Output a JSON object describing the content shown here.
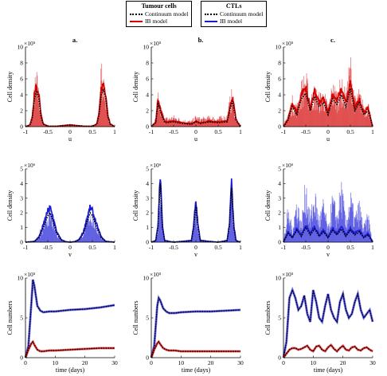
{
  "legends": [
    {
      "title": "Tumour cells",
      "entries": [
        {
          "label": "Continuum model",
          "style": "dotted",
          "color": "#000000"
        },
        {
          "label": "IB model",
          "style": "solid",
          "color": "#d40000"
        }
      ]
    },
    {
      "title": "CTLs",
      "entries": [
        {
          "label": "Continuum model",
          "style": "dotted",
          "color": "#000000"
        },
        {
          "label": "IB model",
          "style": "solid",
          "color": "#1a1ad6"
        }
      ]
    }
  ],
  "colors": {
    "tumour": "#d40000",
    "ctl": "#1a1ad6",
    "continuum": "#000000"
  },
  "chart_data": [
    {
      "id": "a1",
      "type": "line",
      "panel_label": "a.",
      "xlabel": "u",
      "ylabel": "Cell density",
      "exponent": "×10⁵",
      "xlim": [
        -1,
        1
      ],
      "ylim": [
        0,
        10
      ],
      "xticks": [
        -1,
        -0.5,
        0,
        0.5,
        1
      ],
      "yticks": [
        0,
        2,
        4,
        6,
        8,
        10
      ],
      "yticklabels": [
        "0",
        "2",
        "4",
        "6",
        "8",
        "10"
      ],
      "series": [
        {
          "name": "IB model",
          "style": "noisy-fill",
          "color": "#d40000"
        },
        {
          "name": "Continuum model",
          "style": "dotted"
        }
      ],
      "x": [
        -1,
        -0.9,
        -0.85,
        -0.8,
        -0.75,
        -0.7,
        -0.65,
        -0.6,
        -0.5,
        -0.3,
        0,
        0.3,
        0.5,
        0.6,
        0.65,
        0.7,
        0.75,
        0.8,
        0.85,
        0.9,
        1
      ],
      "continuum": [
        0,
        0.2,
        1.0,
        3.5,
        4.5,
        3.5,
        1.2,
        0.3,
        0.05,
        0.05,
        0.2,
        0.05,
        0.05,
        0.3,
        1.5,
        4.0,
        4.6,
        3.6,
        1.2,
        0.3,
        0
      ],
      "ib_peak": [
        0,
        0.4,
        2.0,
        6.0,
        7.5,
        5.0,
        2.0,
        0.5,
        0.1,
        0.1,
        0.3,
        0.1,
        0.1,
        0.6,
        3.0,
        9.9,
        7.5,
        5.0,
        2.0,
        0.5,
        0
      ]
    },
    {
      "id": "b1",
      "type": "line",
      "panel_label": "b.",
      "xlabel": "u",
      "ylabel": "Cell density",
      "exponent": "×10⁵",
      "xlim": [
        -1,
        1
      ],
      "ylim": [
        0,
        10
      ],
      "xticks": [
        -1,
        -0.5,
        0,
        0.5,
        1
      ],
      "yticks": [
        0,
        2,
        4,
        6,
        8,
        10
      ],
      "yticklabels": [
        "0",
        "2",
        "4",
        "6",
        "8",
        "10"
      ],
      "series": [
        {
          "name": "IB model",
          "style": "noisy-fill",
          "color": "#d40000"
        },
        {
          "name": "Continuum model",
          "style": "dotted"
        }
      ],
      "x": [
        -1,
        -0.9,
        -0.85,
        -0.8,
        -0.7,
        -0.5,
        -0.3,
        -0.1,
        0,
        0.1,
        0.3,
        0.5,
        0.7,
        0.78,
        0.82,
        0.9,
        1
      ],
      "continuum": [
        0,
        0.5,
        3.0,
        2.0,
        0.5,
        0.6,
        0.4,
        0.3,
        0.6,
        0.4,
        0.6,
        0.5,
        0.6,
        2.5,
        3.2,
        0.8,
        0
      ],
      "ib_peak": [
        0,
        1.2,
        4.5,
        3.0,
        1.2,
        1.5,
        1.0,
        0.8,
        1.5,
        1.2,
        1.4,
        1.3,
        1.6,
        4.5,
        5.0,
        1.5,
        0
      ]
    },
    {
      "id": "c1",
      "type": "line",
      "panel_label": "c.",
      "xlabel": "u",
      "ylabel": "Cell density",
      "exponent": "×10⁵",
      "xlim": [
        -1,
        1
      ],
      "ylim": [
        0,
        10
      ],
      "xticks": [
        -1,
        -0.5,
        0,
        0.5,
        1
      ],
      "yticks": [
        0,
        2,
        4,
        6,
        8,
        10
      ],
      "yticklabels": [
        "0",
        "2",
        "4",
        "6",
        "8",
        "10"
      ],
      "series": [
        {
          "name": "IB model",
          "style": "noisy-fill",
          "color": "#d40000"
        },
        {
          "name": "Continuum model",
          "style": "dotted"
        }
      ],
      "x": [
        -1,
        -0.9,
        -0.8,
        -0.7,
        -0.6,
        -0.5,
        -0.4,
        -0.3,
        -0.2,
        -0.1,
        0,
        0.1,
        0.2,
        0.3,
        0.4,
        0.5,
        0.6,
        0.7,
        0.8,
        0.9,
        1
      ],
      "continuum": [
        0,
        0.8,
        2.5,
        1.5,
        3.5,
        4.2,
        2.0,
        3.8,
        2.5,
        3.0,
        1.5,
        3.5,
        2.8,
        4.0,
        2.5,
        4.8,
        2.0,
        3.0,
        1.5,
        2.0,
        0
      ],
      "ib_peak": [
        0,
        2.0,
        4.0,
        3.0,
        6.0,
        7.5,
        4.0,
        5.5,
        4.5,
        5.0,
        3.0,
        6.0,
        5.0,
        6.5,
        4.5,
        9.9,
        4.0,
        5.0,
        3.0,
        3.5,
        0
      ]
    },
    {
      "id": "a2",
      "type": "line",
      "xlabel": "v",
      "ylabel": "Cell density",
      "exponent": "×10⁶",
      "xlim": [
        -1,
        1
      ],
      "ylim": [
        0,
        5
      ],
      "xticks": [
        -1,
        -0.5,
        0,
        0.5,
        1
      ],
      "yticks": [
        0,
        1,
        2,
        3,
        4,
        5
      ],
      "yticklabels": [
        "0",
        "1",
        "2",
        "3",
        "4",
        "5"
      ],
      "series": [
        {
          "name": "IB model",
          "style": "noisy-fill",
          "color": "#1a1ad6"
        },
        {
          "name": "Continuum model",
          "style": "dotted"
        }
      ],
      "x": [
        -1,
        -0.8,
        -0.7,
        -0.6,
        -0.5,
        -0.45,
        -0.4,
        -0.3,
        -0.2,
        -0.1,
        0,
        0.1,
        0.2,
        0.3,
        0.4,
        0.45,
        0.5,
        0.6,
        0.7,
        0.8,
        1
      ],
      "continuum": [
        0,
        0.05,
        0.3,
        1.0,
        1.8,
        2.0,
        1.6,
        0.6,
        0.15,
        0.03,
        0,
        0.03,
        0.15,
        0.6,
        1.6,
        2.0,
        1.8,
        1.0,
        0.3,
        0.05,
        0
      ],
      "ib_peak": [
        0,
        0.1,
        0.5,
        1.4,
        2.4,
        2.7,
        2.2,
        0.9,
        0.3,
        0.05,
        0,
        0.05,
        0.3,
        0.9,
        2.3,
        2.7,
        2.4,
        1.4,
        0.5,
        0.1,
        0
      ]
    },
    {
      "id": "b2",
      "type": "line",
      "xlabel": "v",
      "ylabel": "Cell density",
      "exponent": "×10⁶",
      "xlim": [
        -1,
        1
      ],
      "ylim": [
        0,
        5
      ],
      "xticks": [
        -1,
        -0.5,
        0,
        0.5,
        1
      ],
      "yticks": [
        0,
        1,
        2,
        3,
        4,
        5
      ],
      "yticklabels": [
        "0",
        "1",
        "2",
        "3",
        "4",
        "5"
      ],
      "series": [
        {
          "name": "IB model",
          "style": "noisy-fill",
          "color": "#1a1ad6"
        },
        {
          "name": "Continuum model",
          "style": "dotted"
        }
      ],
      "x": [
        -1,
        -0.9,
        -0.85,
        -0.8,
        -0.75,
        -0.7,
        -0.5,
        -0.1,
        -0.05,
        0,
        0.05,
        0.1,
        0.5,
        0.7,
        0.75,
        0.8,
        0.85,
        0.9,
        1
      ],
      "continuum": [
        0,
        0.1,
        1.0,
        4.0,
        1.0,
        0.1,
        0,
        0.1,
        1.0,
        2.5,
        1.0,
        0.1,
        0,
        0.1,
        1.0,
        3.7,
        1.0,
        0.1,
        0
      ],
      "ib_peak": [
        0,
        0.2,
        1.5,
        4.4,
        1.5,
        0.2,
        0,
        0.2,
        1.4,
        2.9,
        1.4,
        0.2,
        0,
        0.2,
        1.5,
        4.1,
        1.5,
        0.2,
        0
      ]
    },
    {
      "id": "c2",
      "type": "line",
      "xlabel": "v",
      "ylabel": "Cell density",
      "exponent": "×10⁶",
      "xlim": [
        -1,
        1
      ],
      "ylim": [
        0,
        5
      ],
      "xticks": [
        -1,
        -0.5,
        0,
        0.5,
        1
      ],
      "yticks": [
        0,
        1,
        2,
        3,
        4,
        5
      ],
      "yticklabels": [
        "0",
        "1",
        "2",
        "3",
        "4",
        "5"
      ],
      "series": [
        {
          "name": "IB model",
          "style": "noisy-fill",
          "color": "#1a1ad6"
        },
        {
          "name": "Continuum model",
          "style": "dotted"
        }
      ],
      "x": [
        -1,
        -0.9,
        -0.8,
        -0.7,
        -0.6,
        -0.5,
        -0.4,
        -0.3,
        -0.2,
        -0.1,
        0,
        0.1,
        0.2,
        0.3,
        0.4,
        0.5,
        0.6,
        0.7,
        0.8,
        0.9,
        1
      ],
      "continuum": [
        0,
        0.6,
        0.3,
        0.8,
        0.4,
        1.0,
        0.5,
        0.9,
        0.4,
        0.7,
        0.3,
        0.8,
        0.5,
        0.9,
        0.4,
        0.8,
        0.5,
        0.7,
        0.3,
        0.5,
        0
      ],
      "ib_peak": [
        0,
        2.5,
        1.2,
        3.5,
        1.5,
        4.8,
        2.0,
        4.0,
        1.8,
        3.2,
        1.0,
        3.6,
        2.2,
        4.5,
        1.6,
        3.8,
        2.0,
        3.0,
        1.2,
        2.2,
        0
      ]
    },
    {
      "id": "a3",
      "type": "line",
      "xlabel": "time (days)",
      "ylabel": "Cell numbers",
      "exponent": "×10⁵",
      "xlim": [
        0,
        30
      ],
      "ylim": [
        0,
        10
      ],
      "xticks": [
        0,
        10,
        20,
        30
      ],
      "yticks": [
        0,
        5,
        10
      ],
      "yticklabels": [
        "0",
        "5",
        "10"
      ],
      "series": [
        {
          "name": "CTLs",
          "color": "#1a1ad6",
          "t": [
            0,
            1,
            2,
            2.5,
            3,
            4,
            5,
            6,
            8,
            10,
            15,
            20,
            25,
            30
          ],
          "values": [
            0,
            1.5,
            7.0,
            9.8,
            9.0,
            6.5,
            5.9,
            5.7,
            5.8,
            5.8,
            6.0,
            6.1,
            6.3,
            6.6
          ]
        },
        {
          "name": "Tumour cells",
          "color": "#d40000",
          "t": [
            0,
            1,
            2,
            2.5,
            3,
            4,
            5,
            6,
            8,
            10,
            15,
            20,
            25,
            30
          ],
          "values": [
            0,
            1.0,
            1.8,
            2.0,
            1.6,
            1.0,
            0.8,
            0.8,
            0.9,
            0.9,
            1.0,
            1.1,
            1.2,
            1.2
          ]
        }
      ]
    },
    {
      "id": "b3",
      "type": "line",
      "xlabel": "time (days)",
      "ylabel": "Cell numbers",
      "exponent": "×10⁵",
      "xlim": [
        0,
        30
      ],
      "ylim": [
        0,
        10
      ],
      "xticks": [
        0,
        10,
        20,
        30
      ],
      "yticks": [
        0,
        5,
        10
      ],
      "yticklabels": [
        "0",
        "5",
        "10"
      ],
      "series": [
        {
          "name": "CTLs",
          "color": "#1a1ad6",
          "t": [
            0,
            1,
            2,
            2.5,
            3,
            4,
            5,
            6,
            8,
            10,
            15,
            20,
            25,
            30
          ],
          "values": [
            0,
            1.5,
            6.5,
            7.5,
            7.2,
            6.2,
            5.8,
            5.6,
            5.6,
            5.7,
            5.8,
            5.8,
            5.9,
            6.0
          ]
        },
        {
          "name": "Tumour cells",
          "color": "#d40000",
          "t": [
            0,
            1,
            2,
            2.5,
            3,
            4,
            5,
            6,
            8,
            10,
            15,
            20,
            25,
            30
          ],
          "values": [
            0,
            1.0,
            1.8,
            2.0,
            1.7,
            1.2,
            1.0,
            0.9,
            0.9,
            0.8,
            0.8,
            0.8,
            0.8,
            0.8
          ]
        }
      ]
    },
    {
      "id": "c3",
      "type": "line",
      "xlabel": "time (days)",
      "ylabel": "Cell numbers",
      "exponent": "×10⁵",
      "xlim": [
        0,
        30
      ],
      "ylim": [
        0,
        10
      ],
      "xticks": [
        0,
        10,
        20,
        30
      ],
      "yticks": [
        0,
        5,
        10
      ],
      "yticklabels": [
        "0",
        "5",
        "10"
      ],
      "series": [
        {
          "name": "CTLs",
          "color": "#1a1ad6",
          "t": [
            0,
            1,
            2,
            3,
            4,
            5,
            6,
            7,
            8,
            9,
            10,
            11,
            12,
            13,
            14,
            15,
            16,
            17,
            18,
            19,
            20,
            21,
            22,
            23,
            24,
            25,
            26,
            27,
            28,
            29,
            30
          ],
          "values": [
            0,
            2.0,
            7.5,
            8.5,
            7.5,
            6.0,
            6.5,
            7.8,
            5.5,
            4.5,
            8.5,
            7.0,
            5.0,
            4.5,
            6.5,
            8.0,
            6.0,
            5.0,
            4.5,
            7.0,
            8.0,
            6.0,
            5.0,
            5.5,
            7.0,
            8.0,
            6.0,
            5.0,
            5.5,
            6.0,
            4.5
          ]
        },
        {
          "name": "Tumour cells",
          "color": "#d40000",
          "t": [
            0,
            1,
            2,
            3,
            4,
            5,
            6,
            7,
            8,
            9,
            10,
            11,
            12,
            13,
            14,
            15,
            16,
            17,
            18,
            19,
            20,
            21,
            22,
            23,
            24,
            25,
            26,
            27,
            28,
            29,
            30
          ],
          "values": [
            0,
            0.5,
            1.0,
            1.2,
            1.2,
            1.0,
            1.1,
            1.3,
            1.5,
            1.0,
            0.8,
            1.4,
            1.5,
            1.0,
            0.8,
            1.3,
            1.6,
            1.1,
            0.8,
            1.2,
            1.5,
            1.0,
            0.9,
            1.3,
            1.4,
            1.0,
            0.9,
            1.2,
            1.3,
            1.0,
            0.8
          ]
        }
      ]
    }
  ]
}
